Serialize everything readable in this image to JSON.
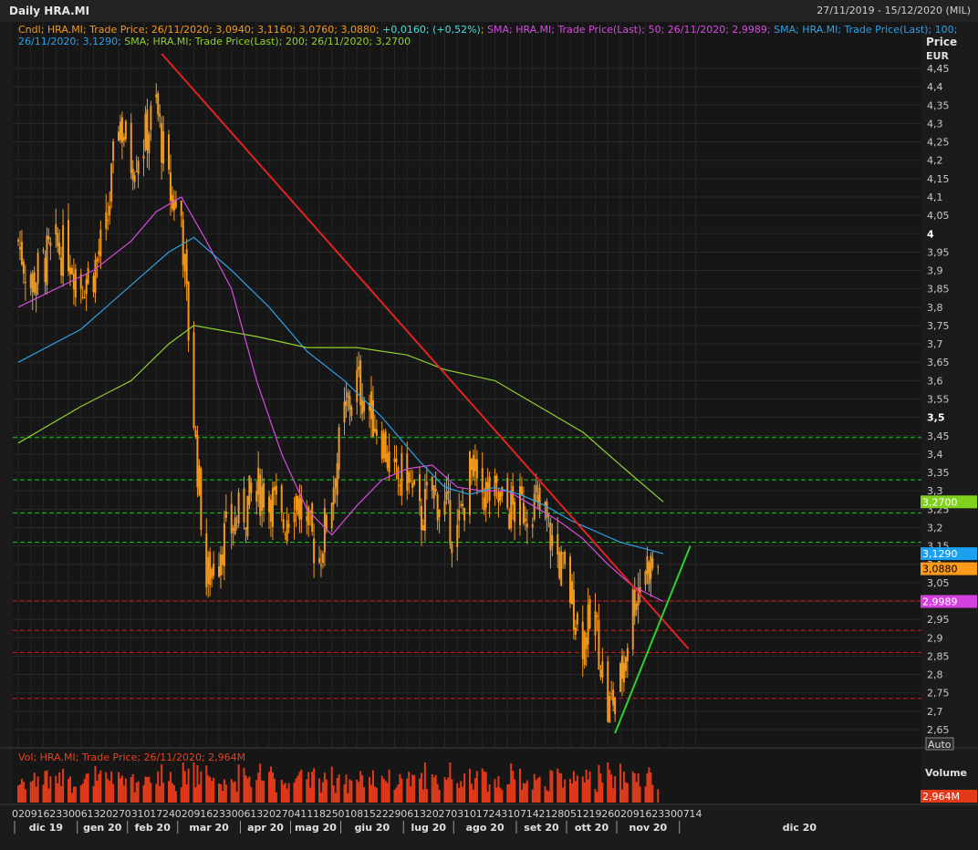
{
  "window": {
    "title": "Daily HRA.MI",
    "date_range": "27/11/2019 - 15/12/2020 (MIL)"
  },
  "legend": {
    "line1_parts": [
      {
        "text": "Cndl; HRA.MI; Trade Price; 26/11/2020; 3,0940; 3,1160; 3,0760; 3,0880; ",
        "color": "#f39a1e"
      },
      {
        "text": "+0,0160; (+0,52%)",
        "color": "#40e0e0"
      },
      {
        "text": "; ",
        "color": "#f39a1e"
      },
      {
        "text": "SMA; HRA.MI; Trade Price(Last);  50; 26/11/2020; 2,9989; ",
        "color": "#d54ce0"
      },
      {
        "text": "SMA; HRA.MI; Trade Price(Last);  100;",
        "color": "#2ea0e6"
      }
    ],
    "line2_parts": [
      {
        "text": "26/11/2020; 3,1290; ",
        "color": "#2ea0e6"
      },
      {
        "text": "SMA; HRA.MI; Trade Price(Last);  200; 26/11/2020; 3,2700",
        "color": "#8fd12a"
      }
    ]
  },
  "price_axis": {
    "title": "Price",
    "unit": "EUR",
    "ticks": [
      "4,45",
      "4,4",
      "4,35",
      "4,3",
      "4,25",
      "4,2",
      "4,15",
      "4,1",
      "4,05",
      "4",
      "3,95",
      "3,9",
      "3,85",
      "3,8",
      "3,75",
      "3,7",
      "3,65",
      "3,6",
      "3,55",
      "3,5",
      "3,45",
      "3,4",
      "3,35",
      "3,3",
      "3,25",
      "3,2",
      "3,15",
      "3,1",
      "3,05",
      "3",
      "2,95",
      "2,9",
      "2,85",
      "2,8",
      "2,75",
      "2,7",
      "2,65"
    ],
    "bold_ticks": [
      "4",
      "3,5"
    ],
    "auto_label": "Auto"
  },
  "value_tags": [
    {
      "text": "3,2700",
      "value": 3.27,
      "color": "#7fd11b",
      "text_color": "#ffffff"
    },
    {
      "text": "3,1290",
      "value": 3.129,
      "color": "#19a0f0",
      "text_color": "#ffffff"
    },
    {
      "text": "3,0880",
      "value": 3.088,
      "color": "#ff9a1a",
      "text_color": "#000000"
    },
    {
      "text": "2,9989",
      "value": 2.9989,
      "color": "#d43fe0",
      "text_color": "#ffffff"
    }
  ],
  "volume_panel": {
    "legend": "Vol; HRA.MI; Trade Price;  26/11/2020; 2,964M",
    "axis_title": "Volume",
    "tag": {
      "text": "2,964M",
      "color": "#e53a1a"
    }
  },
  "time_axis": {
    "day_ticks": [
      "02",
      "09",
      "16",
      "23",
      "30",
      "06",
      "13",
      "20",
      "27",
      "03",
      "10",
      "17",
      "24",
      "02",
      "09",
      "16",
      "23",
      "30",
      "06",
      "13",
      "20",
      "27",
      "04",
      "11",
      "18",
      "25",
      "01",
      "08",
      "15",
      "22",
      "29",
      "06",
      "13",
      "20",
      "27",
      "03",
      "10",
      "17",
      "24",
      "31",
      "07",
      "14",
      "21",
      "28",
      "05",
      "12",
      "19",
      "26",
      "02",
      "09",
      "16",
      "23",
      "30",
      "07",
      "14"
    ],
    "months": [
      {
        "label": "dic 19",
        "week": 0
      },
      {
        "label": "gen 20",
        "week": 5
      },
      {
        "label": "feb 20",
        "week": 9
      },
      {
        "label": "mar 20",
        "week": 13
      },
      {
        "label": "apr 20",
        "week": 18
      },
      {
        "label": "mag 20",
        "week": 22
      },
      {
        "label": "giu 20",
        "week": 26
      },
      {
        "label": "lug 20",
        "week": 31
      },
      {
        "label": "ago 20",
        "week": 35
      },
      {
        "label": "set 20",
        "week": 40
      },
      {
        "label": "ott 20",
        "week": 44
      },
      {
        "label": "nov 20",
        "week": 48
      },
      {
        "label": "dic 20",
        "week": 53
      }
    ]
  },
  "chart_data": {
    "type": "line",
    "subtype": "candlestick",
    "title": "Daily HRA.MI",
    "x_start": "02/12/2019",
    "x_end": "14/12/2020",
    "ylim": [
      2.62,
      4.5
    ],
    "grid": true,
    "close_series": {
      "name": "Cndl; HRA.MI; Trade Price",
      "color": "#f39a1e",
      "points": [
        [
          "2019-12-02",
          3.98
        ],
        [
          "2019-12-09",
          3.86
        ],
        [
          "2019-12-16",
          3.92
        ],
        [
          "2019-12-23",
          3.96
        ],
        [
          "2019-12-30",
          3.95
        ],
        [
          "2020-01-06",
          3.87
        ],
        [
          "2020-01-13",
          3.9
        ],
        [
          "2020-01-20",
          4.0
        ],
        [
          "2020-01-27",
          4.32
        ],
        [
          "2020-02-03",
          4.2
        ],
        [
          "2020-02-10",
          4.25
        ],
        [
          "2020-02-17",
          4.35
        ],
        [
          "2020-02-24",
          4.12
        ],
        [
          "2020-03-02",
          4.05
        ],
        [
          "2020-03-09",
          3.5
        ],
        [
          "2020-03-16",
          3.05
        ],
        [
          "2020-03-23",
          3.15
        ],
        [
          "2020-03-30",
          3.2
        ],
        [
          "2020-04-06",
          3.25
        ],
        [
          "2020-04-13",
          3.3
        ],
        [
          "2020-04-20",
          3.3
        ],
        [
          "2020-04-27",
          3.2
        ],
        [
          "2020-05-04",
          3.3
        ],
        [
          "2020-05-11",
          3.2
        ],
        [
          "2020-05-18",
          3.12
        ],
        [
          "2020-05-25",
          3.3
        ],
        [
          "2020-06-01",
          3.5
        ],
        [
          "2020-06-08",
          3.6
        ],
        [
          "2020-06-15",
          3.52
        ],
        [
          "2020-06-22",
          3.45
        ],
        [
          "2020-06-29",
          3.32
        ],
        [
          "2020-07-06",
          3.35
        ],
        [
          "2020-07-13",
          3.22
        ],
        [
          "2020-07-20",
          3.3
        ],
        [
          "2020-07-27",
          3.25
        ],
        [
          "2020-08-03",
          3.18
        ],
        [
          "2020-08-10",
          3.35
        ],
        [
          "2020-08-17",
          3.3
        ],
        [
          "2020-08-24",
          3.28
        ],
        [
          "2020-08-31",
          3.25
        ],
        [
          "2020-09-07",
          3.25
        ],
        [
          "2020-09-14",
          3.27
        ],
        [
          "2020-09-21",
          3.22
        ],
        [
          "2020-09-28",
          3.12
        ],
        [
          "2020-10-05",
          3.02
        ],
        [
          "2020-10-12",
          2.9
        ],
        [
          "2020-10-19",
          2.95
        ],
        [
          "2020-10-26",
          2.7
        ],
        [
          "2020-11-02",
          2.78
        ],
        [
          "2020-11-09",
          3.0
        ],
        [
          "2020-11-16",
          3.1
        ],
        [
          "2020-11-23",
          3.088
        ]
      ]
    },
    "series": [
      {
        "name": "SMA 50",
        "color": "#d54ce0",
        "points": [
          [
            "2019-12-02",
            3.8
          ],
          [
            "2020-01-13",
            3.9
          ],
          [
            "2020-02-03",
            3.98
          ],
          [
            "2020-02-17",
            4.06
          ],
          [
            "2020-03-02",
            4.1
          ],
          [
            "2020-03-16",
            3.98
          ],
          [
            "2020-03-30",
            3.85
          ],
          [
            "2020-04-13",
            3.6
          ],
          [
            "2020-04-27",
            3.4
          ],
          [
            "2020-05-11",
            3.25
          ],
          [
            "2020-05-25",
            3.18
          ],
          [
            "2020-06-08",
            3.26
          ],
          [
            "2020-06-22",
            3.33
          ],
          [
            "2020-07-06",
            3.36
          ],
          [
            "2020-07-20",
            3.37
          ],
          [
            "2020-08-03",
            3.31
          ],
          [
            "2020-08-17",
            3.3
          ],
          [
            "2020-08-31",
            3.3
          ],
          [
            "2020-09-14",
            3.26
          ],
          [
            "2020-09-28",
            3.22
          ],
          [
            "2020-10-12",
            3.17
          ],
          [
            "2020-10-26",
            3.1
          ],
          [
            "2020-11-09",
            3.04
          ],
          [
            "2020-11-26",
            2.9989
          ]
        ]
      },
      {
        "name": "SMA 100",
        "color": "#2ea0e6",
        "points": [
          [
            "2019-12-02",
            3.65
          ],
          [
            "2020-01-06",
            3.74
          ],
          [
            "2020-02-03",
            3.86
          ],
          [
            "2020-02-24",
            3.95
          ],
          [
            "2020-03-09",
            3.99
          ],
          [
            "2020-03-30",
            3.9
          ],
          [
            "2020-04-20",
            3.8
          ],
          [
            "2020-05-11",
            3.68
          ],
          [
            "2020-06-01",
            3.6
          ],
          [
            "2020-06-22",
            3.5
          ],
          [
            "2020-07-13",
            3.38
          ],
          [
            "2020-07-27",
            3.31
          ],
          [
            "2020-08-10",
            3.29
          ],
          [
            "2020-08-24",
            3.31
          ],
          [
            "2020-09-07",
            3.29
          ],
          [
            "2020-09-21",
            3.26
          ],
          [
            "2020-10-05",
            3.22
          ],
          [
            "2020-10-19",
            3.19
          ],
          [
            "2020-11-02",
            3.16
          ],
          [
            "2020-11-26",
            3.129
          ]
        ]
      },
      {
        "name": "SMA 200",
        "color": "#8fd12a",
        "points": [
          [
            "2019-12-02",
            3.43
          ],
          [
            "2020-01-06",
            3.53
          ],
          [
            "2020-02-03",
            3.6
          ],
          [
            "2020-02-24",
            3.7
          ],
          [
            "2020-03-09",
            3.75
          ],
          [
            "2020-04-13",
            3.72
          ],
          [
            "2020-05-11",
            3.69
          ],
          [
            "2020-06-08",
            3.69
          ],
          [
            "2020-07-06",
            3.67
          ],
          [
            "2020-07-27",
            3.63
          ],
          [
            "2020-08-24",
            3.6
          ],
          [
            "2020-09-21",
            3.52
          ],
          [
            "2020-10-12",
            3.46
          ],
          [
            "2020-11-02",
            3.37
          ],
          [
            "2020-11-26",
            3.27
          ]
        ]
      }
    ],
    "trendlines": [
      {
        "color": "#e32222",
        "points": [
          [
            "2020-02-20",
            4.49
          ],
          [
            "2020-12-10",
            2.87
          ]
        ]
      },
      {
        "color": "#2fd12f",
        "points": [
          [
            "2020-10-30",
            2.64
          ],
          [
            "2020-12-11",
            3.15
          ]
        ]
      }
    ],
    "horizontal_levels": [
      {
        "color": "#21c521",
        "values": [
          3.445,
          3.33,
          3.24,
          3.16
        ]
      },
      {
        "color": "#c42020",
        "values": [
          3.0,
          2.92,
          2.86,
          2.735
        ]
      }
    ],
    "volume": {
      "name": "Vol; HRA.MI; Trade Price",
      "last": "2,964M",
      "color": "#e23a1a"
    }
  }
}
